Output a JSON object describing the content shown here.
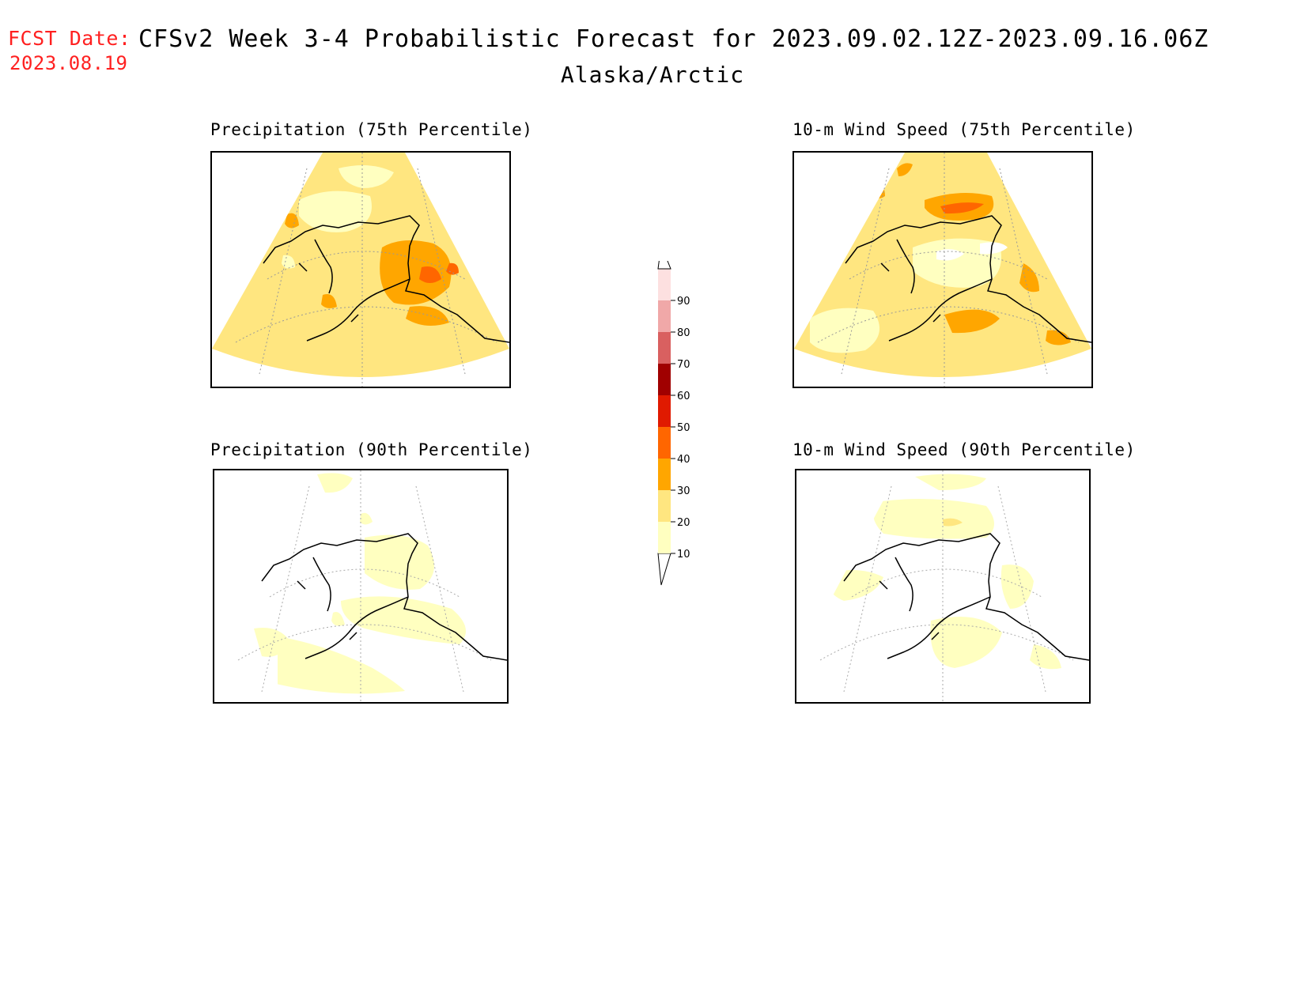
{
  "header": {
    "fcst_label": "FCST Date:",
    "fcst_date": "2023.08.19",
    "title": "CFSv2 Week 3-4 Probabilistic Forecast for 2023.09.02.12Z-2023.09.16.06Z",
    "region": "Alaska/Arctic"
  },
  "panels": {
    "precip_75": {
      "title": "Precipitation (75th Percentile)"
    },
    "wind_75": {
      "title": "10-m Wind Speed (75th Percentile)"
    },
    "precip_90": {
      "title": "Precipitation (90th Percentile)"
    },
    "wind_90": {
      "title": "10-m Wind Speed (90th Percentile)"
    }
  },
  "colorbar": {
    "levels": [
      "10",
      "20",
      "30",
      "40",
      "50",
      "60",
      "70",
      "80",
      "90"
    ],
    "colors": [
      "#ffffc0",
      "#ffe680",
      "#ffa600",
      "#ff6600",
      "#e01a00",
      "#a00000",
      "#d96060",
      "#f0a8a8",
      "#fde0e0"
    ]
  }
}
